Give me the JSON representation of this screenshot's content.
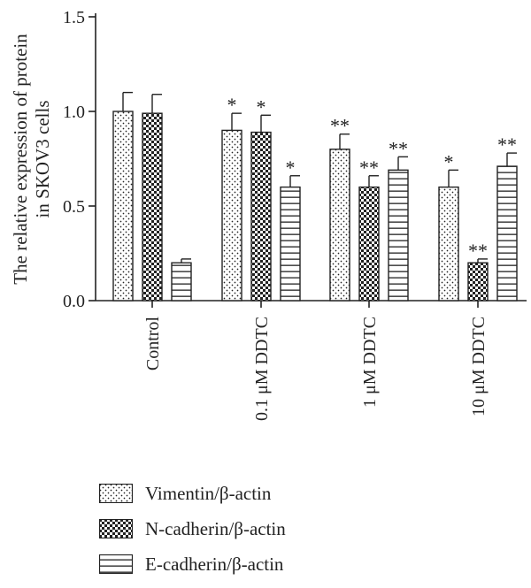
{
  "chart_data": {
    "type": "bar",
    "title": "",
    "ylabel_line1": "The relative expression of protein",
    "ylabel_line2": "in SKOV3 cells",
    "xlabel": "",
    "ylim": [
      0,
      1.5
    ],
    "yticks": [
      "0.0",
      "0.5",
      "1.0",
      "1.5"
    ],
    "categories": [
      "Control",
      "0.1 μM DDTC",
      "1 μM DDTC",
      "10 μM DDTC"
    ],
    "series": [
      {
        "name": "Vimentin/β-actin",
        "pattern": "dots",
        "values": [
          1.0,
          0.9,
          0.8,
          0.6
        ],
        "errors": [
          0.1,
          0.09,
          0.08,
          0.09
        ],
        "significance": [
          "",
          "*",
          "**",
          "*"
        ]
      },
      {
        "name": "N-cadherin/β-actin",
        "pattern": "checker",
        "values": [
          0.99,
          0.89,
          0.6,
          0.2
        ],
        "errors": [
          0.1,
          0.09,
          0.06,
          0.02
        ],
        "significance": [
          "",
          "*",
          "**",
          "**"
        ]
      },
      {
        "name": "E-cadherin/β-actin",
        "pattern": "hlines",
        "values": [
          0.2,
          0.6,
          0.69,
          0.71
        ],
        "errors": [
          0.02,
          0.06,
          0.07,
          0.07
        ],
        "significance": [
          "",
          "*",
          "**",
          "**"
        ]
      }
    ],
    "legend_position": "bottom-left",
    "grid": false
  }
}
